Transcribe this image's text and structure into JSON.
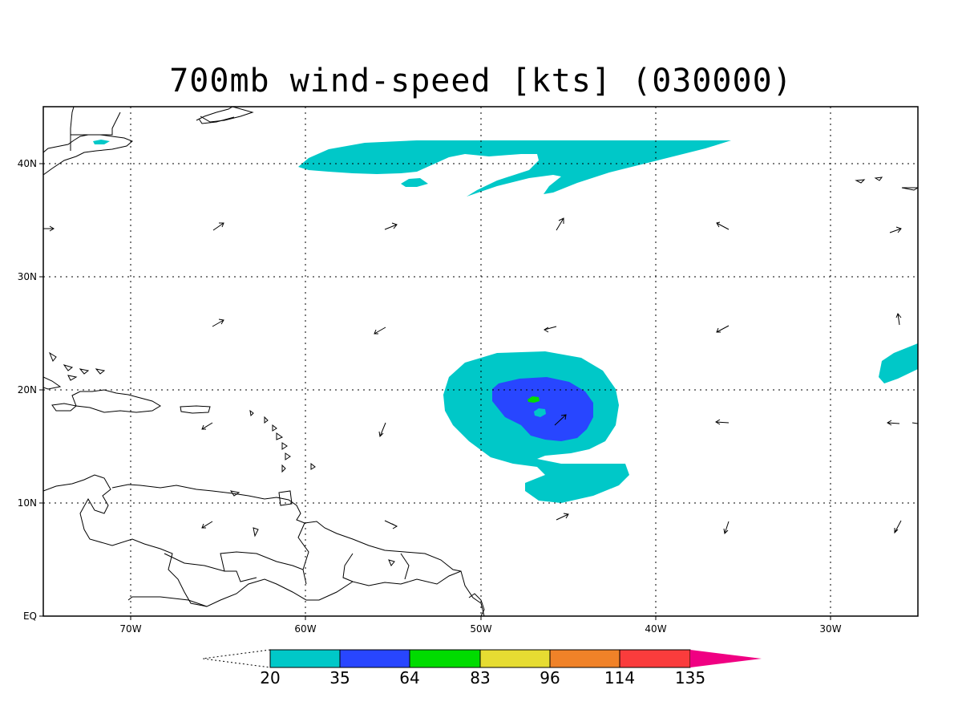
{
  "title": "700mb wind-speed [kts] (030000)",
  "map": {
    "lon_range": [
      -75,
      -25
    ],
    "lat_range": [
      0,
      45
    ],
    "lon_ticks": [
      {
        "value": -70,
        "label": "70W"
      },
      {
        "value": -60,
        "label": "60W"
      },
      {
        "value": -50,
        "label": "50W"
      },
      {
        "value": -40,
        "label": "40W"
      },
      {
        "value": -30,
        "label": "30W"
      }
    ],
    "lat_ticks": [
      {
        "value": 0,
        "label": "EQ"
      },
      {
        "value": 10,
        "label": "10N"
      },
      {
        "value": 20,
        "label": "20N"
      },
      {
        "value": 30,
        "label": "30N"
      },
      {
        "value": 40,
        "label": "40N"
      }
    ],
    "grid": "dotted"
  },
  "colorbar": {
    "levels": [
      "20",
      "35",
      "64",
      "83",
      "96",
      "114",
      "135"
    ],
    "colors": [
      "#00c8c8",
      "#2846ff",
      "#00dc00",
      "#e6dc32",
      "#f08228",
      "#fa3c3c",
      "#f00082"
    ],
    "below_color": "#ffffff"
  },
  "shading": {
    "cyan": "#00c8c8",
    "blue": "#2846ff",
    "green": "#00dc00"
  }
}
